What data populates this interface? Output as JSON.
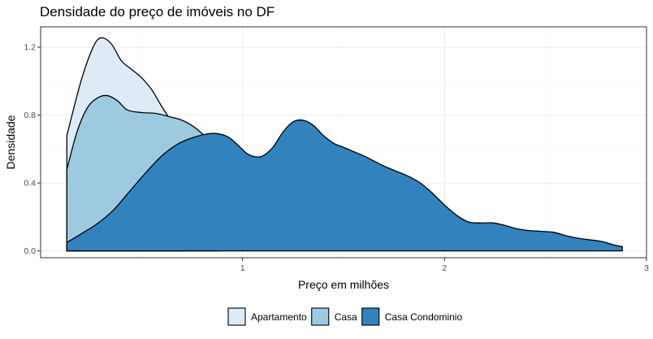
{
  "chart_data": {
    "type": "area",
    "title": "Densidade do preço de imóveis no DF",
    "xlabel": "Preço em milhões",
    "ylabel": "Densidade",
    "xlim": [
      0.0,
      3.0
    ],
    "ylim": [
      -0.04,
      1.32
    ],
    "x_ticks": [
      1,
      2,
      3
    ],
    "y_ticks": [
      0.0,
      0.4,
      0.8,
      1.2
    ],
    "x_tick_labels": [
      "1",
      "2",
      "3"
    ],
    "y_tick_labels": [
      "0.0",
      "0.4",
      "0.8",
      "1.2"
    ],
    "grid": true,
    "legend_position": "bottom",
    "series": [
      {
        "name": "Apartamento",
        "color": "#deebf7",
        "points": [
          [
            0.13,
            0.68
          ],
          [
            0.2,
            1.0
          ],
          [
            0.26,
            1.2
          ],
          [
            0.3,
            1.255
          ],
          [
            0.35,
            1.22
          ],
          [
            0.4,
            1.12
          ],
          [
            0.45,
            1.07
          ],
          [
            0.5,
            1.02
          ],
          [
            0.55,
            0.95
          ],
          [
            0.6,
            0.85
          ],
          [
            0.65,
            0.76
          ],
          [
            0.7,
            0.69
          ]
        ]
      },
      {
        "name": "Casa",
        "color": "#9ecae1",
        "points": [
          [
            0.13,
            0.48
          ],
          [
            0.18,
            0.7
          ],
          [
            0.23,
            0.84
          ],
          [
            0.28,
            0.9
          ],
          [
            0.33,
            0.915
          ],
          [
            0.38,
            0.885
          ],
          [
            0.43,
            0.83
          ],
          [
            0.5,
            0.815
          ],
          [
            0.57,
            0.81
          ],
          [
            0.64,
            0.79
          ],
          [
            0.7,
            0.77
          ],
          [
            0.76,
            0.73
          ],
          [
            0.82,
            0.67
          ],
          [
            0.88,
            0.61
          ]
        ]
      },
      {
        "name": "Casa Condominio",
        "color": "#3182bd",
        "points": [
          [
            0.13,
            0.05
          ],
          [
            0.2,
            0.1
          ],
          [
            0.28,
            0.16
          ],
          [
            0.36,
            0.24
          ],
          [
            0.44,
            0.35
          ],
          [
            0.52,
            0.46
          ],
          [
            0.6,
            0.56
          ],
          [
            0.68,
            0.63
          ],
          [
            0.76,
            0.67
          ],
          [
            0.83,
            0.69
          ],
          [
            0.88,
            0.69
          ],
          [
            0.93,
            0.67
          ],
          [
            0.98,
            0.62
          ],
          [
            1.02,
            0.575
          ],
          [
            1.06,
            0.555
          ],
          [
            1.1,
            0.56
          ],
          [
            1.15,
            0.61
          ],
          [
            1.2,
            0.7
          ],
          [
            1.25,
            0.76
          ],
          [
            1.3,
            0.77
          ],
          [
            1.35,
            0.74
          ],
          [
            1.4,
            0.68
          ],
          [
            1.45,
            0.635
          ],
          [
            1.5,
            0.61
          ],
          [
            1.55,
            0.585
          ],
          [
            1.6,
            0.56
          ],
          [
            1.65,
            0.53
          ],
          [
            1.7,
            0.5
          ],
          [
            1.76,
            0.47
          ],
          [
            1.82,
            0.44
          ],
          [
            1.88,
            0.4
          ],
          [
            1.94,
            0.34
          ],
          [
            2.0,
            0.27
          ],
          [
            2.06,
            0.21
          ],
          [
            2.12,
            0.17
          ],
          [
            2.18,
            0.165
          ],
          [
            2.24,
            0.165
          ],
          [
            2.3,
            0.15
          ],
          [
            2.36,
            0.13
          ],
          [
            2.42,
            0.12
          ],
          [
            2.48,
            0.115
          ],
          [
            2.54,
            0.11
          ],
          [
            2.6,
            0.09
          ],
          [
            2.66,
            0.075
          ],
          [
            2.72,
            0.065
          ],
          [
            2.78,
            0.055
          ],
          [
            2.84,
            0.035
          ],
          [
            2.88,
            0.025
          ]
        ]
      }
    ]
  }
}
